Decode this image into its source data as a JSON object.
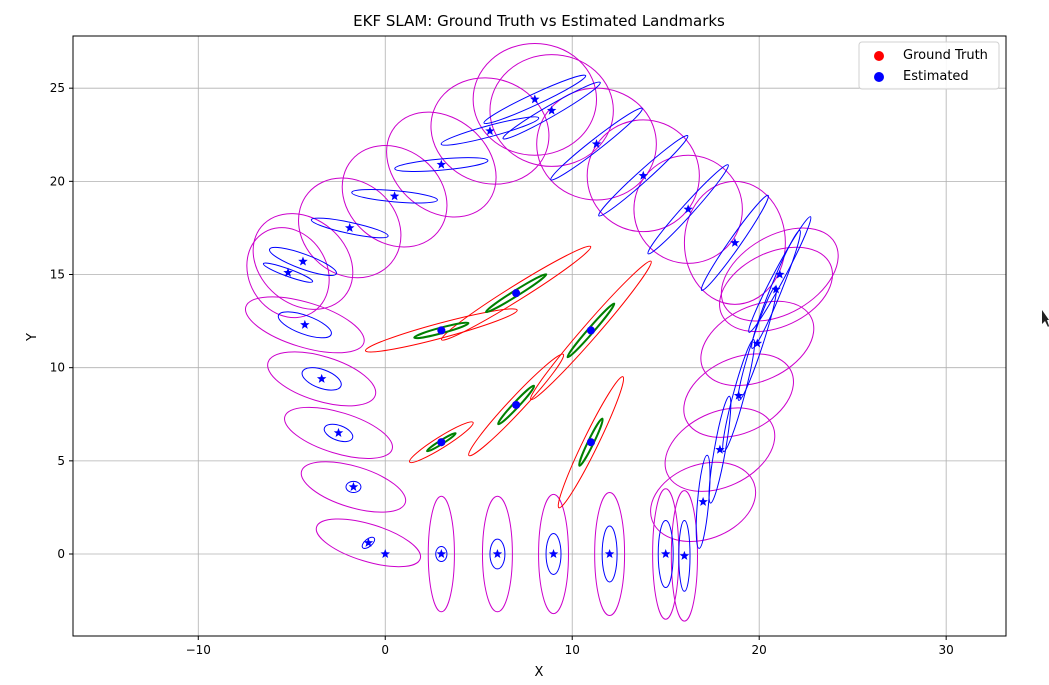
{
  "chart_data": {
    "type": "scatter",
    "title": "EKF SLAM: Ground Truth vs Estimated Landmarks",
    "xlabel": "X",
    "ylabel": "Y",
    "xlim": [
      -16.7,
      33.2
    ],
    "ylim": [
      -4.4,
      27.8
    ],
    "xticks": [
      -10,
      0,
      10,
      20,
      30
    ],
    "yticks": [
      0,
      5,
      10,
      15,
      20,
      25
    ],
    "grid": true,
    "legend_position": "top-right",
    "legend": [
      {
        "label": "Ground Truth",
        "color": "#ff0000"
      },
      {
        "label": "Estimated",
        "color": "#0000ff"
      }
    ],
    "colors": {
      "ground_truth": "#ff0000",
      "estimated": "#0000ff",
      "path_uncertainty": "#cc00cc",
      "landmark_estimate_ellipse": "#008000",
      "landmark_truth_ellipse": "#ff0000",
      "grid": "#b0b0b0"
    },
    "series": [
      {
        "name": "Ground Truth",
        "marker": "circle",
        "points": [
          {
            "x": 3,
            "y": 6
          },
          {
            "x": 7,
            "y": 8
          },
          {
            "x": 11,
            "y": 6
          },
          {
            "x": 3,
            "y": 12
          },
          {
            "x": 7,
            "y": 14
          },
          {
            "x": 11,
            "y": 12
          }
        ]
      },
      {
        "name": "Estimated",
        "marker": "circle",
        "points": [
          {
            "x": 3,
            "y": 6
          },
          {
            "x": 7,
            "y": 8
          },
          {
            "x": 11,
            "y": 6
          },
          {
            "x": 3,
            "y": 12
          },
          {
            "x": 7,
            "y": 14
          },
          {
            "x": 11,
            "y": 12
          }
        ]
      },
      {
        "name": "",
        "marker": "star",
        "points": [
          {
            "x": 0,
            "y": 0
          },
          {
            "x": -0.9,
            "y": 0.6
          },
          {
            "x": -1.7,
            "y": 3.6
          },
          {
            "x": -2.5,
            "y": 6.5
          },
          {
            "x": -3.4,
            "y": 9.4
          },
          {
            "x": -4.3,
            "y": 12.3
          },
          {
            "x": -5.2,
            "y": 15.1
          },
          {
            "x": -4.4,
            "y": 15.7
          },
          {
            "x": -1.9,
            "y": 17.5
          },
          {
            "x": 0.5,
            "y": 19.2
          },
          {
            "x": 3.0,
            "y": 20.9
          },
          {
            "x": 5.6,
            "y": 22.7
          },
          {
            "x": 8.0,
            "y": 24.4
          },
          {
            "x": 8.9,
            "y": 23.8
          },
          {
            "x": 11.3,
            "y": 22.0
          },
          {
            "x": 13.8,
            "y": 20.3
          },
          {
            "x": 16.2,
            "y": 18.5
          },
          {
            "x": 18.7,
            "y": 16.7
          },
          {
            "x": 21.1,
            "y": 15.0
          },
          {
            "x": 20.9,
            "y": 14.2
          },
          {
            "x": 19.9,
            "y": 11.3
          },
          {
            "x": 18.9,
            "y": 8.5
          },
          {
            "x": 17.9,
            "y": 5.6
          },
          {
            "x": 17.0,
            "y": 2.8
          },
          {
            "x": 16.0,
            "y": -0.1
          },
          {
            "x": 15.0,
            "y": 0
          },
          {
            "x": 12.0,
            "y": 0
          },
          {
            "x": 9.0,
            "y": 0
          },
          {
            "x": 6.0,
            "y": 0
          },
          {
            "x": 3.0,
            "y": 0
          }
        ]
      }
    ],
    "path_uncertainty_ellipses": [
      {
        "x": -0.9,
        "y": 0.6,
        "rx": 2.9,
        "ry": 1.0,
        "angle": 17
      },
      {
        "x": -1.7,
        "y": 3.6,
        "rx": 2.9,
        "ry": 1.1,
        "angle": 17
      },
      {
        "x": -2.5,
        "y": 6.5,
        "rx": 3.0,
        "ry": 1.1,
        "angle": 17
      },
      {
        "x": -3.4,
        "y": 9.4,
        "rx": 3.0,
        "ry": 1.2,
        "angle": 17
      },
      {
        "x": -4.3,
        "y": 12.3,
        "rx": 3.3,
        "ry": 1.2,
        "angle": 17
      },
      {
        "x": -5.2,
        "y": 15.1,
        "rx": 2.5,
        "ry": 2.1,
        "angle": 60
      },
      {
        "x": -4.4,
        "y": 15.7,
        "rx": 2.9,
        "ry": 2.3,
        "angle": 40
      },
      {
        "x": -1.9,
        "y": 17.5,
        "rx": 2.9,
        "ry": 2.5,
        "angle": 40
      },
      {
        "x": 0.5,
        "y": 19.2,
        "rx": 3.0,
        "ry": 2.5,
        "angle": 40
      },
      {
        "x": 3.0,
        "y": 20.9,
        "rx": 3.2,
        "ry": 2.5,
        "angle": 40
      },
      {
        "x": 5.6,
        "y": 22.7,
        "rx": 3.2,
        "ry": 2.8,
        "angle": 20
      },
      {
        "x": 8.0,
        "y": 24.4,
        "rx": 3.3,
        "ry": 3.0,
        "angle": 0
      },
      {
        "x": 8.9,
        "y": 23.8,
        "rx": 3.3,
        "ry": 3.0,
        "angle": 0
      },
      {
        "x": 11.3,
        "y": 22.0,
        "rx": 3.2,
        "ry": 3.0,
        "angle": 0
      },
      {
        "x": 13.8,
        "y": 20.3,
        "rx": 3.0,
        "ry": 3.0,
        "angle": 0
      },
      {
        "x": 16.2,
        "y": 18.5,
        "rx": 2.9,
        "ry": 2.9,
        "angle": 0
      },
      {
        "x": 18.7,
        "y": 16.7,
        "rx": 2.7,
        "ry": 3.3,
        "angle": 0
      },
      {
        "x": 21.1,
        "y": 15.0,
        "rx": 3.4,
        "ry": 2.1,
        "angle": -30
      },
      {
        "x": 20.9,
        "y": 14.2,
        "rx": 3.2,
        "ry": 2.0,
        "angle": -25
      },
      {
        "x": 19.9,
        "y": 11.3,
        "rx": 3.2,
        "ry": 2.0,
        "angle": -25
      },
      {
        "x": 18.9,
        "y": 8.5,
        "rx": 3.1,
        "ry": 2.0,
        "angle": -25
      },
      {
        "x": 17.9,
        "y": 5.6,
        "rx": 3.1,
        "ry": 2.0,
        "angle": -25
      },
      {
        "x": 17.0,
        "y": 2.8,
        "rx": 2.9,
        "ry": 2.0,
        "angle": -20
      },
      {
        "x": 16.0,
        "y": -0.1,
        "rx": 0.7,
        "ry": 3.5,
        "angle": 0
      },
      {
        "x": 15.0,
        "y": 0,
        "rx": 0.7,
        "ry": 3.5,
        "angle": 0
      },
      {
        "x": 12.0,
        "y": 0,
        "rx": 0.8,
        "ry": 3.3,
        "angle": 0
      },
      {
        "x": 9.0,
        "y": 0,
        "rx": 0.8,
        "ry": 3.2,
        "angle": 0
      },
      {
        "x": 6.0,
        "y": 0,
        "rx": 0.8,
        "ry": 3.1,
        "angle": 0
      },
      {
        "x": 3.0,
        "y": 0,
        "rx": 0.7,
        "ry": 3.1,
        "angle": 0
      }
    ],
    "estimate_ellipses": [
      {
        "x": -0.9,
        "y": 0.6,
        "rx": 0.4,
        "ry": 0.2,
        "angle": -40
      },
      {
        "x": -1.7,
        "y": 3.6,
        "rx": 0.4,
        "ry": 0.3,
        "angle": 0
      },
      {
        "x": -2.5,
        "y": 6.5,
        "rx": 0.8,
        "ry": 0.4,
        "angle": 20
      },
      {
        "x": -3.4,
        "y": 9.4,
        "rx": 1.1,
        "ry": 0.5,
        "angle": 20
      },
      {
        "x": -4.3,
        "y": 12.3,
        "rx": 1.5,
        "ry": 0.5,
        "angle": 20
      },
      {
        "x": -5.2,
        "y": 15.1,
        "rx": 1.4,
        "ry": 0.2,
        "angle": 20
      },
      {
        "x": -4.4,
        "y": 15.7,
        "rx": 1.9,
        "ry": 0.4,
        "angle": 20
      },
      {
        "x": -1.9,
        "y": 17.5,
        "rx": 2.1,
        "ry": 0.3,
        "angle": 12
      },
      {
        "x": 0.5,
        "y": 19.2,
        "rx": 2.3,
        "ry": 0.3,
        "angle": 5
      },
      {
        "x": 3.0,
        "y": 20.9,
        "rx": 2.5,
        "ry": 0.3,
        "angle": -5
      },
      {
        "x": 5.6,
        "y": 22.7,
        "rx": 2.7,
        "ry": 0.3,
        "angle": -15
      },
      {
        "x": 8.0,
        "y": 24.4,
        "rx": 3.0,
        "ry": 0.3,
        "angle": -25
      },
      {
        "x": 8.9,
        "y": 23.8,
        "rx": 3.0,
        "ry": 0.3,
        "angle": -30
      },
      {
        "x": 11.3,
        "y": 22.0,
        "rx": 3.1,
        "ry": 0.3,
        "angle": -38
      },
      {
        "x": 13.8,
        "y": 20.3,
        "rx": 3.2,
        "ry": 0.3,
        "angle": -42
      },
      {
        "x": 16.2,
        "y": 18.5,
        "rx": 3.2,
        "ry": 0.3,
        "angle": -48
      },
      {
        "x": 18.7,
        "y": 16.7,
        "rx": 3.1,
        "ry": 0.3,
        "angle": -55
      },
      {
        "x": 21.1,
        "y": 15.0,
        "rx": 3.5,
        "ry": 0.3,
        "angle": -62
      },
      {
        "x": 20.9,
        "y": 14.2,
        "rx": 3.4,
        "ry": 0.3,
        "angle": -68
      },
      {
        "x": 19.9,
        "y": 11.3,
        "rx": 3.2,
        "ry": 0.3,
        "angle": -72
      },
      {
        "x": 18.9,
        "y": 8.5,
        "rx": 3.1,
        "ry": 0.3,
        "angle": -75
      },
      {
        "x": 17.9,
        "y": 5.6,
        "rx": 2.9,
        "ry": 0.3,
        "angle": -80
      },
      {
        "x": 17.0,
        "y": 2.8,
        "rx": 2.5,
        "ry": 0.3,
        "angle": -85
      },
      {
        "x": 16.0,
        "y": -0.1,
        "rx": 0.3,
        "ry": 1.9,
        "angle": 0
      },
      {
        "x": 15.0,
        "y": 0,
        "rx": 0.4,
        "ry": 1.8,
        "angle": 0
      },
      {
        "x": 12.0,
        "y": 0,
        "rx": 0.4,
        "ry": 1.5,
        "angle": 0
      },
      {
        "x": 9.0,
        "y": 0,
        "rx": 0.4,
        "ry": 1.1,
        "angle": 0
      },
      {
        "x": 6.0,
        "y": 0,
        "rx": 0.4,
        "ry": 0.8,
        "angle": 0
      },
      {
        "x": 3.0,
        "y": 0,
        "rx": 0.3,
        "ry": 0.4,
        "angle": 0
      }
    ],
    "landmark_truth_ellipses": [
      {
        "x": 3,
        "y": 6,
        "rx": 2.0,
        "ry": 0.3,
        "angle": -32
      },
      {
        "x": 7,
        "y": 8,
        "rx": 3.7,
        "ry": 0.4,
        "angle": -47
      },
      {
        "x": 11,
        "y": 6,
        "rx": 3.9,
        "ry": 0.4,
        "angle": -64
      },
      {
        "x": 3,
        "y": 12,
        "rx": 4.2,
        "ry": 0.4,
        "angle": -15
      },
      {
        "x": 7,
        "y": 14,
        "rx": 4.7,
        "ry": 0.4,
        "angle": -32
      },
      {
        "x": 11,
        "y": 12,
        "rx": 4.9,
        "ry": 0.4,
        "angle": -49
      }
    ],
    "landmark_estimate_ellipses": [
      {
        "x": 3,
        "y": 6,
        "rx": 0.9,
        "ry": 0.1,
        "angle": -32
      },
      {
        "x": 7,
        "y": 8,
        "rx": 1.4,
        "ry": 0.15,
        "angle": -47
      },
      {
        "x": 11,
        "y": 6,
        "rx": 1.4,
        "ry": 0.15,
        "angle": -64
      },
      {
        "x": 3,
        "y": 12,
        "rx": 1.5,
        "ry": 0.15,
        "angle": -15
      },
      {
        "x": 7,
        "y": 14,
        "rx": 1.9,
        "ry": 0.15,
        "angle": -32
      },
      {
        "x": 11,
        "y": 12,
        "rx": 1.9,
        "ry": 0.15,
        "angle": -49
      }
    ]
  }
}
